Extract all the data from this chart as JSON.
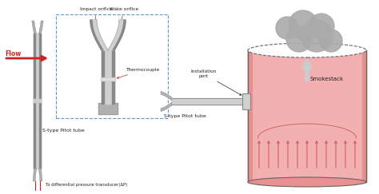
{
  "bg_color": "#ffffff",
  "tube_color": "#b0b0b0",
  "tube_edge": "#888888",
  "tube_light": "#d0d0d0",
  "pink_color": "#f2b0b0",
  "pink_dark": "#e89090",
  "dashed_box_color": "#6699bb",
  "arrow_color": "#cc2222",
  "text_color": "#222222",
  "smoke_color": "#aaaaaa",
  "smoke_dark": "#909090",
  "stack_edge": "#666666",
  "labels": {
    "flow": "Flow",
    "impact": "Impact orifice",
    "wake": "Wake orifice",
    "thermocouple": "Thermocouple",
    "s_pitot_left": "S-type Pitot tube",
    "s_pitot_right": "S-type Pitot tube",
    "differential": "To differential pressure transducer(ΔP)",
    "installation": "Installation\nport",
    "smokestack": "Smokestack"
  },
  "figsize": [
    4.74,
    2.43
  ],
  "dpi": 100
}
